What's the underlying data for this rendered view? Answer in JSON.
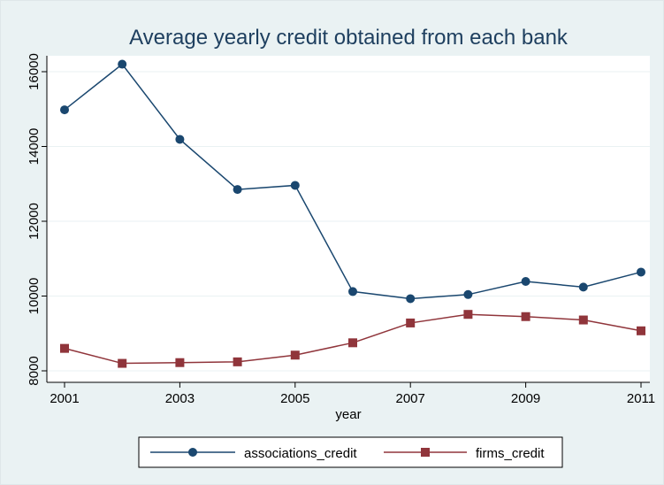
{
  "chart_data": {
    "type": "line",
    "title": "Average yearly credit obtained from each bank",
    "xlabel": "year",
    "ylabel": "",
    "x": [
      2001,
      2002,
      2003,
      2004,
      2005,
      2006,
      2007,
      2008,
      2009,
      2010,
      2011
    ],
    "xlim": [
      2001,
      2011
    ],
    "ylim": [
      8000,
      16500
    ],
    "xticks": [
      "2001",
      "2003",
      "2005",
      "2007",
      "2009",
      "2011"
    ],
    "yticks": [
      "8000",
      "10000",
      "12000",
      "14000",
      "16000"
    ],
    "grid": true,
    "legend_position": "bottom",
    "series": [
      {
        "name": "associations_credit",
        "color": "#1a476f",
        "marker": "circle",
        "values": [
          14980,
          16200,
          14190,
          12850,
          12960,
          10120,
          9930,
          10040,
          10390,
          10240,
          10640
        ]
      },
      {
        "name": "firms_credit",
        "color": "#90353b",
        "marker": "square",
        "values": [
          8600,
          8200,
          8220,
          8240,
          8420,
          8750,
          9280,
          9510,
          9450,
          9360,
          9070
        ]
      }
    ]
  }
}
